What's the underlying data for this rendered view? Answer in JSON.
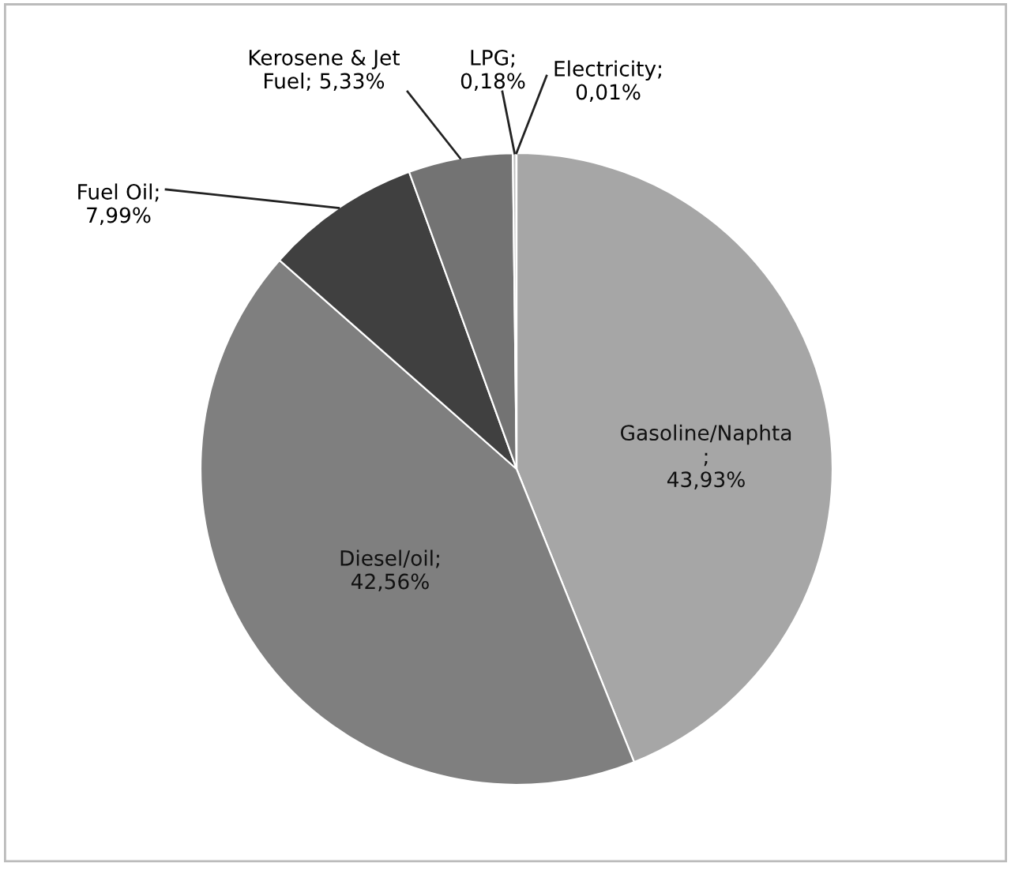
{
  "chart_data": {
    "type": "pie",
    "categories": [
      "Gasoline/Naphta",
      "Diesel/oil",
      "Fuel Oil",
      "Kerosene & Jet Fuel",
      "LPG",
      "Electricity"
    ],
    "values": [
      43.93,
      42.56,
      7.99,
      5.33,
      0.18,
      0.01
    ],
    "colors": [
      "#a6a6a6",
      "#7f7f7f",
      "#404040",
      "#737373",
      "#bfbfbf",
      "#d9d9d9"
    ],
    "value_labels": [
      ";\n43,93%",
      ";\n42,56%",
      ";\n7,99%",
      "; 5,33%",
      ";\n0,18%",
      ";\n0,01%"
    ],
    "legend": false
  }
}
